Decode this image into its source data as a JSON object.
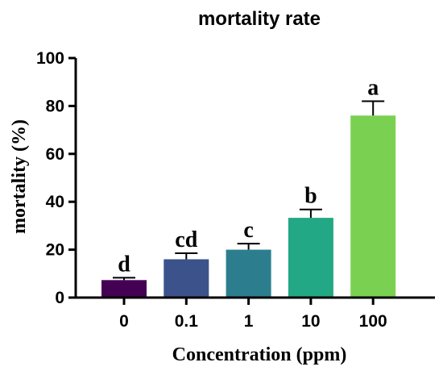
{
  "chart_data": {
    "type": "bar",
    "title": "mortality rate",
    "xlabel": "Concentration (ppm)",
    "ylabel": "mortality (%)",
    "categories": [
      "0",
      "0.1",
      "1",
      "10",
      "100"
    ],
    "values": [
      7.3,
      16.0,
      20.0,
      33.3,
      76.0
    ],
    "errors": [
      1.0,
      2.5,
      2.5,
      3.5,
      6.0
    ],
    "significance_labels": [
      "d",
      "cd",
      "c",
      "b",
      "a"
    ],
    "colors": [
      "#440154",
      "#3b528b",
      "#2c7e8e",
      "#22a884",
      "#7ad151"
    ],
    "ylim": [
      0,
      100
    ],
    "yticks": [
      0,
      20,
      40,
      60,
      80,
      100
    ],
    "grid": false,
    "legend": "none"
  }
}
